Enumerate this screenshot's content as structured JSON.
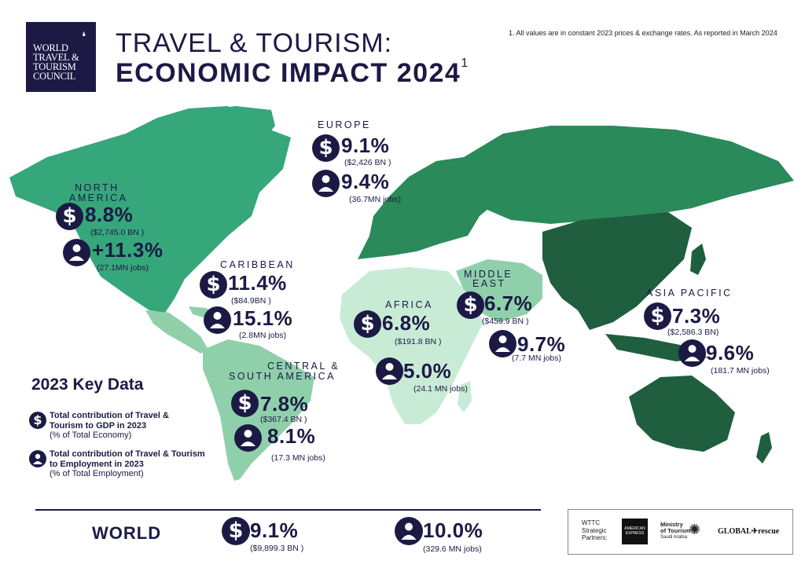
{
  "header": {
    "logo_lines": [
      "WORLD",
      "TRAVEL &",
      "TOURISM",
      "COUNCIL"
    ],
    "title_line1": "TRAVEL & TOURISM:",
    "title_line2": "ECONOMIC IMPACT 2024",
    "title_sup": "1",
    "footnote": "1. All values are in constant 2023 prices & exchange rates. As reported in March 2024"
  },
  "colors": {
    "navy": "#1c1a45",
    "green_dark": "#1f5e3e",
    "green_mid": "#2a8a5a",
    "green_teal": "#36a77b",
    "green_light": "#8fd0ab",
    "green_pale": "#c8ebd5"
  },
  "regions": {
    "europe": {
      "name": "EUROPE",
      "gdp_pct": "9.1%",
      "gdp_val": "($2,426 BN )",
      "jobs_pct": "9.4%",
      "jobs_val": "(36.7MN jobs)"
    },
    "north_america": {
      "name_l1": "NORTH",
      "name_l2": "AMERICA",
      "gdp_pct": "8.8%",
      "gdp_val": "($2,745.0 BN )",
      "jobs_pct": "+11.3%",
      "jobs_val": "(27.1MN jobs)"
    },
    "caribbean": {
      "name": "CARIBBEAN",
      "gdp_pct": "11.4%",
      "gdp_val": "($84.9BN )",
      "jobs_pct": "15.1%",
      "jobs_val": "(2.8MN jobs)"
    },
    "middle_east": {
      "name_l1": "MIDDLE",
      "name_l2": "EAST",
      "gdp_pct": "6.7%",
      "gdp_val": "($459.9 BN )",
      "jobs_pct": "9.7%",
      "jobs_val": "(7.7 MN jobs)"
    },
    "africa": {
      "name": "AFRICA",
      "gdp_pct": "6.8%",
      "gdp_val": "($191.8 BN )",
      "jobs_pct": "5.0%",
      "jobs_val": "(24.1 MN jobs)"
    },
    "asia_pacific": {
      "name": "ASIA PACIFIC",
      "gdp_pct": "7.3%",
      "gdp_val": "($2,586.3 BN)",
      "jobs_pct": "9.6%",
      "jobs_val": "(181.7 MN jobs)"
    },
    "central_south_america": {
      "name_l1": "CENTRAL &",
      "name_l2": "SOUTH AMERICA",
      "gdp_pct": "7.8%",
      "gdp_val": "($367.4 BN )",
      "jobs_pct": "8.1%",
      "jobs_val": "(17.3 MN jobs)"
    }
  },
  "key": {
    "heading": "2023 Key Data",
    "gdp_bold": "Total contribution of Travel & Tourism to GDP in 2023",
    "gdp_note": "(% of Total Economy)",
    "jobs_bold": "Total contribution of Travel & Tourism to Employment in 2023",
    "jobs_note": "(% of Total Employment)"
  },
  "world": {
    "label": "WORLD",
    "gdp_pct": "9.1%",
    "gdp_val": "($9,899.3 BN )",
    "jobs_pct": "10.0%",
    "jobs_val": "(329.6 MN jobs)"
  },
  "partners": {
    "label_lines": [
      "WTTC",
      "Strategic",
      "Partners:"
    ],
    "amex_lines": [
      "AMERICAN",
      "EXPRESS"
    ],
    "ministry_lines": [
      "Ministry",
      "of Tourism",
      "Saudi Arabia"
    ],
    "global_rescue": "GLOBAL✈rescue"
  },
  "icons": {
    "dollar": "dollar-icon",
    "person": "person-icon"
  }
}
